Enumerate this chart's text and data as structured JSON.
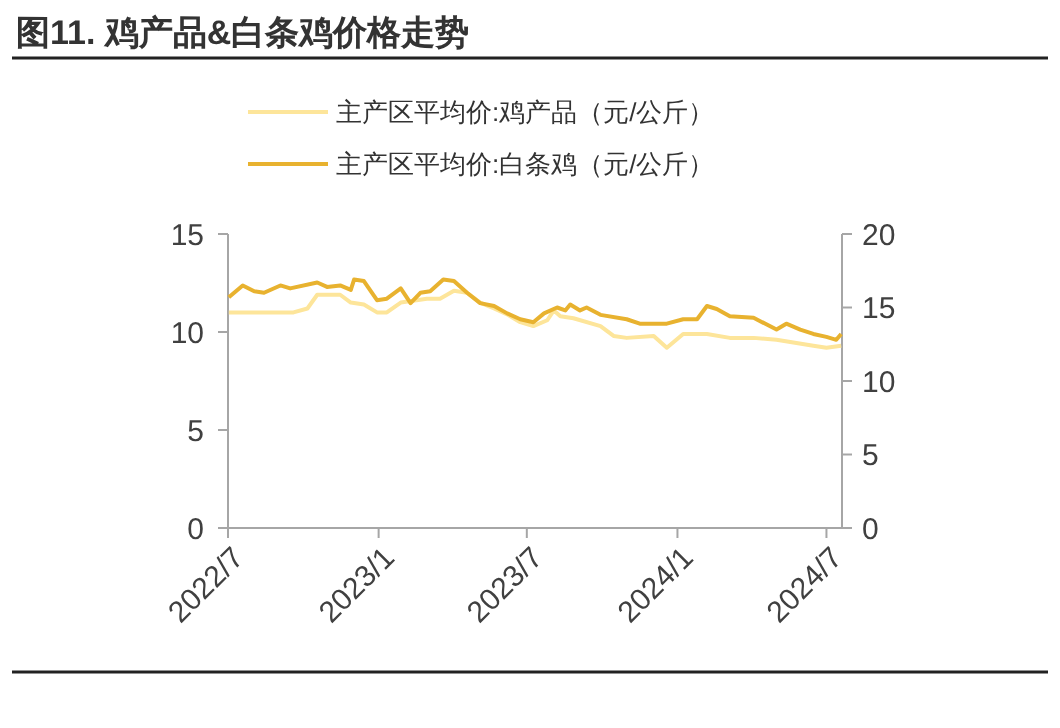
{
  "chart_data": {
    "type": "line",
    "title": "图11. 鸡产品&白条鸡价格走势",
    "xlim": [
      "2022-07-01",
      "2024-07-20"
    ],
    "xticks": [
      {
        "value": "2022-07-01",
        "label": "2022/7"
      },
      {
        "value": "2023-01-01",
        "label": "2023/1"
      },
      {
        "value": "2023-07-01",
        "label": "2023/7"
      },
      {
        "value": "2024-01-01",
        "label": "2024/1"
      },
      {
        "value": "2024-07-01",
        "label": "2024/7"
      }
    ],
    "ylim": [
      0,
      15
    ],
    "yticks": [
      0,
      5,
      10,
      15
    ],
    "y2lim": [
      0,
      20
    ],
    "y2ticks": [
      0,
      5,
      10,
      15,
      20
    ],
    "legend": "top",
    "grid": false,
    "series": [
      {
        "name": "主产区平均价:鸡产品（元/公斤）",
        "color": "#fde59a",
        "x": [
          "2022-07-02",
          "2022-08-18",
          "2022-09-19",
          "2022-10-06",
          "2022-10-18",
          "2022-11-15",
          "2022-11-28",
          "2022-12-14",
          "2022-12-30",
          "2023-01-11",
          "2023-01-28",
          "2023-03-01",
          "2023-03-17",
          "2023-04-03",
          "2023-04-19",
          "2023-05-05",
          "2023-05-22",
          "2023-06-07",
          "2023-06-23",
          "2023-07-09",
          "2023-07-26",
          "2023-08-03",
          "2023-08-11",
          "2023-08-27",
          "2023-09-29",
          "2023-10-15",
          "2023-10-31",
          "2023-12-03",
          "2023-12-19",
          "2024-01-08",
          "2024-02-06",
          "2024-03-05",
          "2024-04-03",
          "2024-05-01",
          "2024-06-15",
          "2024-07-01",
          "2024-07-19"
        ],
        "values": [
          11.0,
          11.0,
          11.0,
          11.2,
          11.9,
          11.9,
          11.5,
          11.4,
          11.0,
          11.0,
          11.5,
          11.7,
          11.7,
          12.1,
          12.0,
          11.5,
          11.2,
          10.9,
          10.5,
          10.3,
          10.6,
          11.1,
          10.8,
          10.7,
          10.3,
          9.8,
          9.7,
          9.8,
          9.2,
          9.9,
          9.9,
          9.7,
          9.7,
          9.6,
          9.3,
          9.2,
          9.3
        ]
      },
      {
        "name": "主产区平均价:白条鸡（元/公斤）",
        "color": "#e8b22f",
        "axis": "y2",
        "x": [
          "2022-07-02",
          "2022-07-19",
          "2022-08-02",
          "2022-08-14",
          "2022-09-03",
          "2022-09-15",
          "2022-10-18",
          "2022-10-30",
          "2022-11-15",
          "2022-11-28",
          "2022-12-02",
          "2022-12-14",
          "2022-12-30",
          "2023-01-11",
          "2023-01-28",
          "2023-02-09",
          "2023-02-21",
          "2023-03-05",
          "2023-03-21",
          "2023-04-03",
          "2023-04-19",
          "2023-05-05",
          "2023-05-22",
          "2023-06-07",
          "2023-06-23",
          "2023-07-09",
          "2023-07-22",
          "2023-08-07",
          "2023-08-17",
          "2023-08-23",
          "2023-09-04",
          "2023-09-12",
          "2023-09-29",
          "2023-10-31",
          "2023-11-16",
          "2023-12-19",
          "2024-01-08",
          "2024-01-25",
          "2024-02-06",
          "2024-02-18",
          "2024-03-05",
          "2024-04-03",
          "2024-05-01",
          "2024-05-13",
          "2024-05-30",
          "2024-06-15",
          "2024-07-01",
          "2024-07-13",
          "2024-07-19"
        ],
        "values": [
          15.7,
          16.5,
          16.1,
          16.0,
          16.5,
          16.3,
          16.7,
          16.4,
          16.5,
          16.2,
          16.9,
          16.8,
          15.5,
          15.6,
          16.3,
          15.3,
          16.0,
          16.1,
          16.9,
          16.8,
          16.0,
          15.3,
          15.1,
          14.6,
          14.2,
          14.0,
          14.6,
          15.0,
          14.8,
          15.2,
          14.8,
          15.0,
          14.5,
          14.2,
          13.9,
          13.9,
          14.2,
          14.2,
          15.1,
          14.9,
          14.4,
          14.3,
          13.5,
          13.9,
          13.5,
          13.2,
          13.0,
          12.8,
          13.2
        ]
      }
    ]
  }
}
